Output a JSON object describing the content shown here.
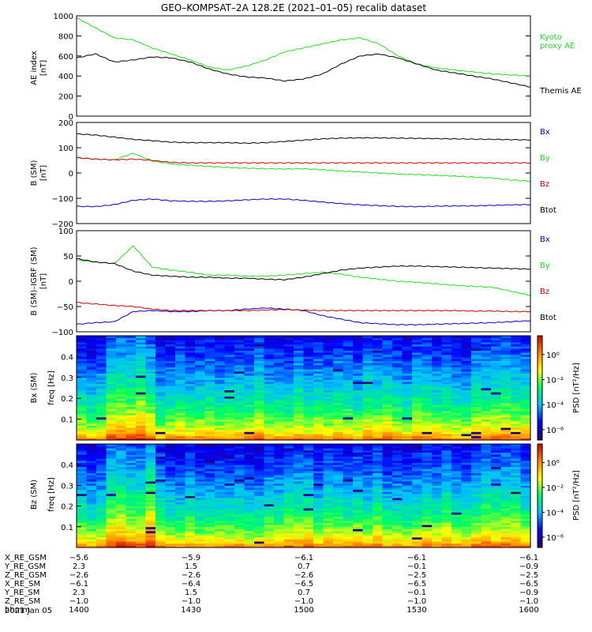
{
  "colors": {
    "ae_kyoto": "#22dd22",
    "ae_themis": "#000000",
    "bx": "#0000cc",
    "by": "#22dd22",
    "bz": "#cc0000",
    "btot": "#000000"
  },
  "chart_data": [
    {
      "type": "line",
      "title": "GEO–KOMPSAT–2A 128.2E (2021–01–05) recalib dataset",
      "ylabel": "AE index",
      "yunit": "[nT]",
      "ylim": [
        0,
        1000
      ],
      "yticks": [
        "0",
        "200",
        "400",
        "600",
        "800",
        "1000"
      ],
      "xlim": [
        0,
        120
      ],
      "series": [
        {
          "name": "Kyoto proxy AE",
          "label_lines": [
            "Kyoto",
            "proxy AE"
          ],
          "color": "#22dd22",
          "x": [
            0,
            5,
            10,
            15,
            20,
            25,
            30,
            35,
            40,
            45,
            50,
            55,
            60,
            65,
            70,
            75,
            80,
            85,
            90,
            95,
            100,
            105,
            110,
            115,
            120
          ],
          "values": [
            980,
            880,
            780,
            760,
            680,
            620,
            560,
            490,
            460,
            500,
            560,
            640,
            680,
            720,
            760,
            780,
            720,
            600,
            520,
            480,
            460,
            440,
            420,
            410,
            400
          ]
        },
        {
          "name": "Themis AE",
          "label_lines": [
            "Themis AE"
          ],
          "color": "#000000",
          "x": [
            0,
            5,
            10,
            15,
            20,
            25,
            30,
            35,
            40,
            45,
            50,
            55,
            60,
            65,
            70,
            75,
            80,
            85,
            90,
            95,
            100,
            105,
            110,
            115,
            120
          ],
          "values": [
            580,
            620,
            540,
            560,
            590,
            580,
            540,
            470,
            420,
            390,
            380,
            350,
            370,
            420,
            520,
            600,
            620,
            580,
            520,
            460,
            430,
            400,
            370,
            330,
            290
          ]
        }
      ]
    },
    {
      "type": "line",
      "ylabel": "B (SM)",
      "yunit": "[nT]",
      "ylim": [
        -200,
        200
      ],
      "yticks": [
        "−200",
        "−100",
        "0",
        "100",
        "200"
      ],
      "xlim": [
        0,
        120
      ],
      "series": [
        {
          "name": "Bx",
          "color": "#0000cc",
          "x": [
            0,
            5,
            10,
            15,
            20,
            25,
            30,
            35,
            40,
            45,
            50,
            55,
            60,
            65,
            70,
            75,
            80,
            85,
            90,
            95,
            100,
            105,
            110,
            115,
            120
          ],
          "values": [
            -132,
            -133,
            -125,
            -108,
            -103,
            -110,
            -112,
            -112,
            -110,
            -106,
            -103,
            -103,
            -108,
            -115,
            -121,
            -126,
            -129,
            -132,
            -133,
            -131,
            -130,
            -130,
            -128,
            -126,
            -125
          ]
        },
        {
          "name": "By",
          "color": "#22dd22",
          "x": [
            0,
            5,
            10,
            15,
            20,
            25,
            30,
            35,
            40,
            45,
            50,
            55,
            60,
            65,
            70,
            75,
            80,
            85,
            90,
            95,
            100,
            105,
            110,
            115,
            120
          ],
          "values": [
            62,
            55,
            52,
            78,
            48,
            36,
            31,
            26,
            22,
            19,
            17,
            16,
            17,
            13,
            8,
            4,
            0,
            -4,
            -6,
            -9,
            -12,
            -16,
            -20,
            -28,
            -32
          ]
        },
        {
          "name": "Bz",
          "color": "#cc0000",
          "x": [
            0,
            5,
            10,
            15,
            20,
            25,
            30,
            35,
            40,
            45,
            50,
            55,
            60,
            65,
            70,
            75,
            80,
            85,
            90,
            95,
            100,
            105,
            110,
            115,
            120
          ],
          "values": [
            60,
            55,
            52,
            55,
            50,
            42,
            40,
            40,
            40,
            40,
            40,
            40,
            40,
            40,
            40,
            40,
            40,
            40,
            40,
            40,
            40,
            40,
            40,
            40,
            40
          ]
        },
        {
          "name": "Btot",
          "color": "#000000",
          "x": [
            0,
            5,
            10,
            15,
            20,
            25,
            30,
            35,
            40,
            45,
            50,
            55,
            60,
            65,
            70,
            75,
            80,
            85,
            90,
            95,
            100,
            105,
            110,
            115,
            120
          ],
          "values": [
            155,
            150,
            142,
            133,
            128,
            122,
            120,
            120,
            120,
            118,
            120,
            125,
            130,
            135,
            138,
            139,
            139,
            138,
            137,
            136,
            135,
            134,
            133,
            132,
            131
          ]
        }
      ]
    },
    {
      "type": "line",
      "ylabel": "B (SM)–IGRF (SM)",
      "yunit": "[nT]",
      "ylim": [
        -100,
        100
      ],
      "yticks": [
        "−100",
        "−50",
        "0",
        "50",
        "100"
      ],
      "xlim": [
        0,
        120
      ],
      "series": [
        {
          "name": "Bx",
          "color": "#0000cc",
          "x": [
            0,
            5,
            10,
            15,
            20,
            25,
            30,
            35,
            40,
            45,
            50,
            55,
            60,
            65,
            70,
            75,
            80,
            85,
            90,
            95,
            100,
            105,
            110,
            115,
            120
          ],
          "values": [
            -85,
            -82,
            -80,
            -60,
            -58,
            -60,
            -60,
            -58,
            -58,
            -55,
            -53,
            -55,
            -58,
            -68,
            -75,
            -82,
            -84,
            -86,
            -86,
            -85,
            -84,
            -83,
            -82,
            -80,
            -78
          ]
        },
        {
          "name": "By",
          "color": "#22dd22",
          "x": [
            0,
            5,
            10,
            15,
            20,
            25,
            30,
            35,
            40,
            45,
            50,
            55,
            60,
            65,
            70,
            75,
            80,
            85,
            90,
            95,
            100,
            105,
            110,
            115,
            120
          ],
          "values": [
            42,
            38,
            35,
            70,
            28,
            22,
            18,
            12,
            12,
            10,
            10,
            12,
            15,
            18,
            14,
            8,
            4,
            0,
            -2,
            -5,
            -8,
            -10,
            -12,
            -20,
            -28
          ]
        },
        {
          "name": "Bz",
          "color": "#cc0000",
          "x": [
            0,
            5,
            10,
            15,
            20,
            25,
            30,
            35,
            40,
            45,
            50,
            55,
            60,
            65,
            70,
            75,
            80,
            85,
            90,
            95,
            100,
            105,
            110,
            115,
            120
          ],
          "values": [
            -42,
            -45,
            -48,
            -50,
            -55,
            -58,
            -58,
            -58,
            -58,
            -58,
            -57,
            -56,
            -57,
            -58,
            -58,
            -58,
            -58,
            -58,
            -58,
            -58,
            -58,
            -59,
            -59,
            -60,
            -60
          ]
        },
        {
          "name": "Btot",
          "color": "#000000",
          "x": [
            0,
            5,
            10,
            15,
            20,
            25,
            30,
            35,
            40,
            45,
            50,
            55,
            60,
            65,
            70,
            75,
            80,
            85,
            90,
            95,
            100,
            105,
            110,
            115,
            120
          ],
          "values": [
            45,
            38,
            35,
            20,
            12,
            10,
            8,
            8,
            6,
            6,
            4,
            3,
            8,
            15,
            22,
            26,
            28,
            30,
            30,
            29,
            28,
            27,
            26,
            25,
            24
          ]
        }
      ]
    },
    {
      "type": "heatmap",
      "ylabel": "Bx (SM)",
      "yunit": "freq [Hz]",
      "ylim": [
        0,
        0.5
      ],
      "yticks": [
        "0.1",
        "0.2",
        "0.3",
        "0.4"
      ],
      "colorbar": {
        "label": "PSD [nT²/Hz]",
        "ticks": [
          "10⁰",
          "10⁻²",
          "10⁻⁴",
          "10⁻⁶"
        ],
        "colors": [
          "#2a0060",
          "#0000ff",
          "#00c0ff",
          "#00ff60",
          "#ffff00",
          "#ff8000",
          "#cc0000"
        ]
      }
    },
    {
      "type": "heatmap",
      "ylabel": "Bz (SM)",
      "yunit": "freq [Hz]",
      "ylim": [
        0,
        0.5
      ],
      "yticks": [
        "0.1",
        "0.2",
        "0.3",
        "0.4"
      ],
      "colorbar": {
        "label": "PSD [nT²/Hz]",
        "ticks": [
          "10⁰",
          "10⁻²",
          "10⁻⁴",
          "10⁻⁶"
        ],
        "colors": [
          "#2a0060",
          "#0000ff",
          "#00c0ff",
          "#00ff60",
          "#ffff00",
          "#ff8000",
          "#cc0000"
        ]
      }
    }
  ],
  "ephemeris": {
    "row_labels": [
      "X_RE_GSM",
      "Y_RE_GSM",
      "Z_RE_GSM",
      "X_RE_SM",
      "Y_RE_SM",
      "Z_RE_SM",
      "hhmm"
    ],
    "columns": [
      [
        "−5.6",
        "2.3",
        "−2.6",
        "−6.1",
        "2.3",
        "−1.0",
        "1400"
      ],
      [
        "−5.9",
        "1.5",
        "−2.6",
        "−6.4",
        "1.5",
        "−1.0",
        "1430"
      ],
      [
        "−6.1",
        "0.7",
        "−2.6",
        "−6.5",
        "0.7",
        "−1.0",
        "1500"
      ],
      [
        "−6.1",
        "−0.1",
        "−2.5",
        "−6.5",
        "−0.1",
        "−1.0",
        "1530"
      ],
      [
        "−6.1",
        "−0.9",
        "−2.5",
        "−6.5",
        "−0.9",
        "−1.0",
        "1600"
      ]
    ],
    "date": "2021 Jan 05"
  }
}
